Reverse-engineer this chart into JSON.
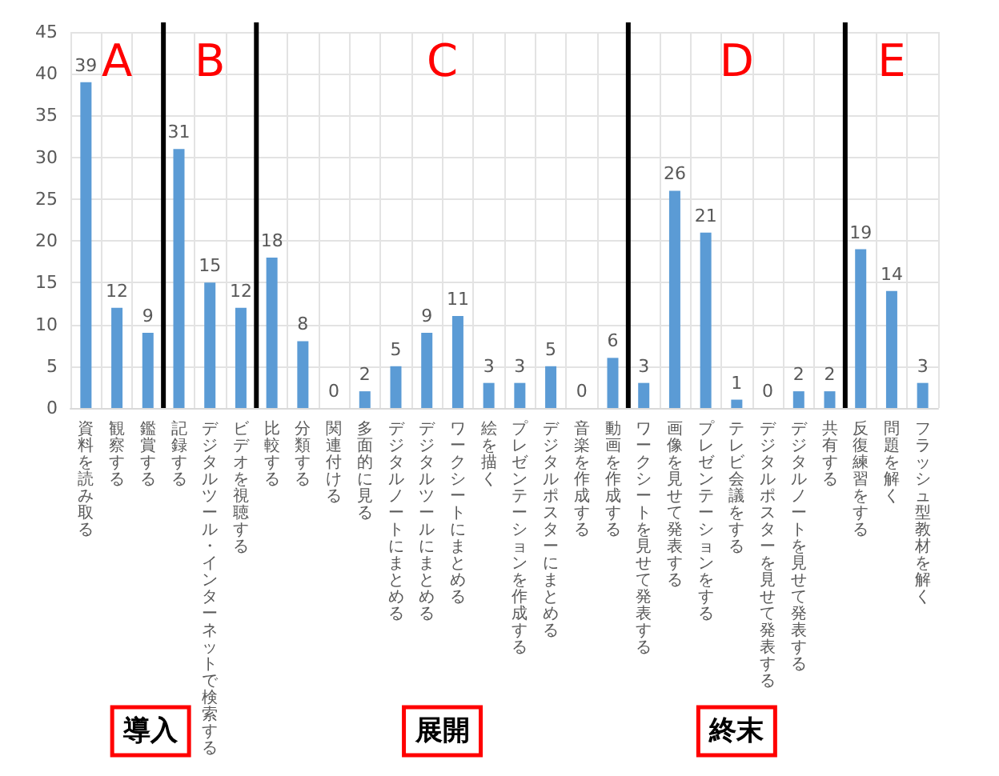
{
  "chart_data": {
    "type": "bar",
    "categories": [
      "資料を読み取る",
      "観察する",
      "鑑賞する",
      "記録する",
      "デジタルツール・インターネットで検索する",
      "ビデオを視聴する",
      "比較する",
      "分類する",
      "関連付ける",
      "多面的に見る",
      "デジタルノートにまとめる",
      "デジタルツールにまとめる",
      "ワークシートにまとめる",
      "絵を描く",
      "プレゼンテーションを作成する",
      "デジタルポスターにまとめる",
      "音楽を作成する",
      "動画を作成する",
      "ワークシートを見せて発表する",
      "画像を見せて発表する",
      "プレゼンテーションをする",
      "テレビ会議をする",
      "デジタルポスターを見せて発表する",
      "デジタルノートを見せて発表する",
      "共有する",
      "反復練習をする",
      "問題を解く",
      "フラッシュ型教材を解く"
    ],
    "values": [
      39,
      12,
      9,
      31,
      15,
      12,
      18,
      8,
      0,
      2,
      5,
      9,
      11,
      3,
      3,
      5,
      0,
      6,
      3,
      26,
      21,
      1,
      0,
      2,
      2,
      19,
      14,
      3
    ],
    "color": "#5b9bd5",
    "ylim": [
      0,
      45
    ],
    "yticks": [
      0,
      5,
      10,
      15,
      20,
      25,
      30,
      35,
      40,
      45
    ],
    "grid": true,
    "data_labels": true,
    "annotations": [
      "A",
      "B",
      "C",
      "D",
      "E",
      "導入",
      "展開",
      "終末"
    ]
  }
}
